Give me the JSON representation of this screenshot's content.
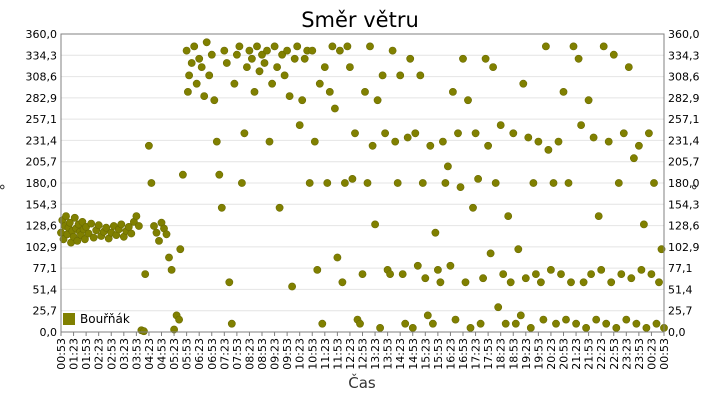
{
  "chart_data": {
    "type": "scatter",
    "title": "Směr větru",
    "xlabel": "Čas",
    "ylabel": "°",
    "ylim": [
      0,
      360
    ],
    "y_ticks": [
      "0,0",
      "25,7",
      "51,4",
      "77,1",
      "102,9",
      "128,6",
      "154,3",
      "180,0",
      "205,7",
      "231,4",
      "257,1",
      "282,9",
      "308,6",
      "334,3",
      "360,0"
    ],
    "x_ticks": [
      "00:53",
      "01:23",
      "01:53",
      "02:23",
      "02:53",
      "03:23",
      "03:53",
      "04:23",
      "04:53",
      "05:23",
      "05:53",
      "06:23",
      "06:53",
      "07:23",
      "07:53",
      "08:23",
      "08:53",
      "09:23",
      "09:53",
      "10:23",
      "10:53",
      "11:23",
      "11:53",
      "12:23",
      "12:53",
      "13:23",
      "13:53",
      "14:23",
      "14:53",
      "15:23",
      "15:53",
      "16:23",
      "16:53",
      "17:23",
      "17:53",
      "18:23",
      "18:53",
      "19:23",
      "19:53",
      "20:23",
      "20:53",
      "21:23",
      "21:53",
      "22:23",
      "22:53",
      "23:23",
      "23:53",
      "00:23",
      "00:53"
    ],
    "x_unit": "hours since first tick",
    "grid": true,
    "legend_position": "bottom-left",
    "series": [
      {
        "name": "Bouřňák",
        "color": "#808000",
        "points": [
          [
            0.0,
            120
          ],
          [
            0.1,
            135
          ],
          [
            0.2,
            112
          ],
          [
            0.3,
            128
          ],
          [
            0.4,
            140
          ],
          [
            0.5,
            118
          ],
          [
            0.6,
            126
          ],
          [
            0.7,
            132
          ],
          [
            0.8,
            108
          ],
          [
            0.9,
            122
          ],
          [
            1.0,
            115
          ],
          [
            1.1,
            138
          ],
          [
            1.2,
            125
          ],
          [
            1.3,
            110
          ],
          [
            1.4,
            130
          ],
          [
            1.5,
            121
          ],
          [
            1.6,
            117
          ],
          [
            1.7,
            133
          ],
          [
            1.8,
            124
          ],
          [
            1.9,
            112
          ],
          [
            2.0,
            127
          ],
          [
            2.2,
            119
          ],
          [
            2.4,
            131
          ],
          [
            2.6,
            114
          ],
          [
            2.8,
            123
          ],
          [
            3.0,
            129
          ],
          [
            3.2,
            116
          ],
          [
            3.4,
            121
          ],
          [
            3.6,
            126
          ],
          [
            3.8,
            113
          ],
          [
            4.0,
            120
          ],
          [
            4.2,
            128
          ],
          [
            4.4,
            117
          ],
          [
            4.6,
            124
          ],
          [
            4.8,
            130
          ],
          [
            5.0,
            115
          ],
          [
            5.2,
            122
          ],
          [
            5.4,
            127
          ],
          [
            5.6,
            119
          ],
          [
            5.8,
            133
          ],
          [
            6.0,
            140
          ],
          [
            6.2,
            128
          ],
          [
            6.4,
            2
          ],
          [
            6.6,
            1
          ],
          [
            6.7,
            70
          ],
          [
            7.0,
            225
          ],
          [
            7.2,
            180
          ],
          [
            7.4,
            128
          ],
          [
            7.6,
            120
          ],
          [
            7.8,
            110
          ],
          [
            8.0,
            132
          ],
          [
            8.2,
            125
          ],
          [
            8.4,
            118
          ],
          [
            8.6,
            90
          ],
          [
            8.8,
            75
          ],
          [
            9.0,
            3
          ],
          [
            9.2,
            20
          ],
          [
            9.4,
            15
          ],
          [
            9.5,
            100
          ],
          [
            9.7,
            190
          ],
          [
            10.0,
            340
          ],
          [
            10.1,
            290
          ],
          [
            10.2,
            310
          ],
          [
            10.4,
            325
          ],
          [
            10.6,
            345
          ],
          [
            10.8,
            300
          ],
          [
            11.0,
            330
          ],
          [
            11.2,
            320
          ],
          [
            11.4,
            285
          ],
          [
            11.6,
            350
          ],
          [
            11.8,
            310
          ],
          [
            12.0,
            335
          ],
          [
            12.2,
            280
          ],
          [
            12.4,
            230
          ],
          [
            12.6,
            190
          ],
          [
            12.8,
            150
          ],
          [
            13.0,
            340
          ],
          [
            13.2,
            325
          ],
          [
            13.4,
            60
          ],
          [
            13.6,
            10
          ],
          [
            13.8,
            300
          ],
          [
            14.0,
            335
          ],
          [
            14.2,
            345
          ],
          [
            14.4,
            180
          ],
          [
            14.6,
            240
          ],
          [
            14.8,
            320
          ],
          [
            15.0,
            340
          ],
          [
            15.2,
            330
          ],
          [
            15.4,
            290
          ],
          [
            15.6,
            345
          ],
          [
            15.8,
            315
          ],
          [
            16.0,
            335
          ],
          [
            16.2,
            325
          ],
          [
            16.4,
            340
          ],
          [
            16.6,
            230
          ],
          [
            16.8,
            300
          ],
          [
            17.0,
            345
          ],
          [
            17.2,
            320
          ],
          [
            17.4,
            150
          ],
          [
            17.6,
            335
          ],
          [
            17.8,
            310
          ],
          [
            18.0,
            340
          ],
          [
            18.2,
            285
          ],
          [
            18.4,
            55
          ],
          [
            18.6,
            330
          ],
          [
            18.8,
            345
          ],
          [
            19.0,
            250
          ],
          [
            19.2,
            280
          ],
          [
            19.4,
            330
          ],
          [
            19.6,
            340
          ],
          [
            19.8,
            180
          ],
          [
            20.0,
            340
          ],
          [
            20.2,
            230
          ],
          [
            20.4,
            75
          ],
          [
            20.6,
            300
          ],
          [
            20.8,
            10
          ],
          [
            21.0,
            320
          ],
          [
            21.2,
            180
          ],
          [
            21.4,
            290
          ],
          [
            21.6,
            345
          ],
          [
            21.8,
            270
          ],
          [
            22.0,
            90
          ],
          [
            22.2,
            340
          ],
          [
            22.4,
            60
          ],
          [
            22.6,
            180
          ],
          [
            22.8,
            345
          ],
          [
            23.0,
            320
          ],
          [
            23.2,
            185
          ],
          [
            23.4,
            240
          ],
          [
            23.6,
            15
          ],
          [
            23.8,
            10
          ],
          [
            24.0,
            70
          ],
          [
            24.2,
            290
          ],
          [
            24.4,
            180
          ],
          [
            24.6,
            345
          ],
          [
            24.8,
            225
          ],
          [
            25.0,
            130
          ],
          [
            25.2,
            280
          ],
          [
            25.4,
            5
          ],
          [
            25.6,
            310
          ],
          [
            25.8,
            240
          ],
          [
            26.0,
            75
          ],
          [
            26.2,
            70
          ],
          [
            26.4,
            340
          ],
          [
            26.6,
            230
          ],
          [
            26.8,
            180
          ],
          [
            27.0,
            310
          ],
          [
            27.2,
            70
          ],
          [
            27.4,
            10
          ],
          [
            27.6,
            235
          ],
          [
            27.8,
            330
          ],
          [
            28.0,
            5
          ],
          [
            28.2,
            240
          ],
          [
            28.4,
            80
          ],
          [
            28.6,
            310
          ],
          [
            28.8,
            180
          ],
          [
            29.0,
            65
          ],
          [
            29.2,
            20
          ],
          [
            29.4,
            225
          ],
          [
            29.6,
            10
          ],
          [
            29.8,
            120
          ],
          [
            30.0,
            75
          ],
          [
            30.2,
            60
          ],
          [
            30.4,
            230
          ],
          [
            30.6,
            180
          ],
          [
            30.8,
            200
          ],
          [
            31.0,
            80
          ],
          [
            31.2,
            290
          ],
          [
            31.4,
            15
          ],
          [
            31.6,
            240
          ],
          [
            31.8,
            175
          ],
          [
            32.0,
            330
          ],
          [
            32.2,
            60
          ],
          [
            32.4,
            280
          ],
          [
            32.6,
            5
          ],
          [
            32.8,
            150
          ],
          [
            33.0,
            240
          ],
          [
            33.2,
            185
          ],
          [
            33.4,
            10
          ],
          [
            33.6,
            65
          ],
          [
            33.8,
            330
          ],
          [
            34.0,
            225
          ],
          [
            34.2,
            95
          ],
          [
            34.4,
            320
          ],
          [
            34.6,
            180
          ],
          [
            34.8,
            30
          ],
          [
            35.0,
            250
          ],
          [
            35.2,
            70
          ],
          [
            35.4,
            10
          ],
          [
            35.6,
            140
          ],
          [
            35.8,
            60
          ],
          [
            36.0,
            240
          ],
          [
            36.2,
            10
          ],
          [
            36.4,
            100
          ],
          [
            36.6,
            20
          ],
          [
            36.8,
            300
          ],
          [
            37.0,
            65
          ],
          [
            37.2,
            235
          ],
          [
            37.4,
            5
          ],
          [
            37.6,
            180
          ],
          [
            37.8,
            70
          ],
          [
            38.0,
            230
          ],
          [
            38.2,
            60
          ],
          [
            38.4,
            15
          ],
          [
            38.6,
            345
          ],
          [
            38.8,
            220
          ],
          [
            39.0,
            75
          ],
          [
            39.2,
            180
          ],
          [
            39.4,
            10
          ],
          [
            39.6,
            230
          ],
          [
            39.8,
            70
          ],
          [
            40.0,
            290
          ],
          [
            40.2,
            15
          ],
          [
            40.4,
            180
          ],
          [
            40.6,
            60
          ],
          [
            40.8,
            345
          ],
          [
            41.0,
            10
          ],
          [
            41.2,
            330
          ],
          [
            41.4,
            250
          ],
          [
            41.6,
            60
          ],
          [
            41.8,
            5
          ],
          [
            42.0,
            280
          ],
          [
            42.2,
            70
          ],
          [
            42.4,
            235
          ],
          [
            42.6,
            15
          ],
          [
            42.8,
            140
          ],
          [
            43.0,
            75
          ],
          [
            43.2,
            345
          ],
          [
            43.4,
            10
          ],
          [
            43.6,
            230
          ],
          [
            43.8,
            60
          ],
          [
            44.0,
            335
          ],
          [
            44.2,
            5
          ],
          [
            44.4,
            180
          ],
          [
            44.6,
            70
          ],
          [
            44.8,
            240
          ],
          [
            45.0,
            15
          ],
          [
            45.2,
            320
          ],
          [
            45.4,
            65
          ],
          [
            45.6,
            210
          ],
          [
            45.8,
            10
          ],
          [
            46.0,
            225
          ],
          [
            46.2,
            75
          ],
          [
            46.4,
            130
          ],
          [
            46.6,
            5
          ],
          [
            46.8,
            240
          ],
          [
            47.0,
            70
          ],
          [
            47.2,
            180
          ],
          [
            47.4,
            10
          ],
          [
            47.6,
            60
          ],
          [
            47.8,
            100
          ],
          [
            48.0,
            5
          ]
        ]
      }
    ]
  }
}
